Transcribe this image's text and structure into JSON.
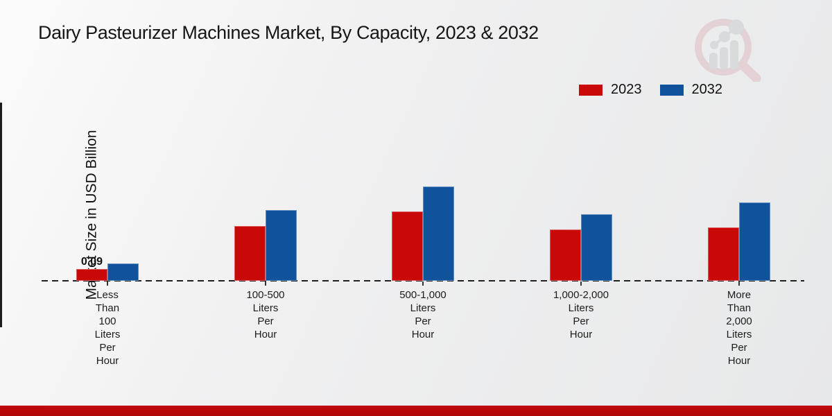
{
  "page": {
    "title": "Dairy Pasteurizer Machines Market, By Capacity, 2023 & 2032"
  },
  "chart_data": {
    "type": "bar",
    "title": "Dairy Pasteurizer Machines Market, By Capacity, 2023 & 2032",
    "xlabel": "",
    "ylabel": "Market Size in USD Billion",
    "categories": [
      "Less Than 100 Liters Per Hour",
      "100-500 Liters Per Hour",
      "500-1,000 Liters Per Hour",
      "1,000-2,000 Liters Per Hour",
      "More Than 2,000 Liters Per Hour"
    ],
    "series": [
      {
        "name": "2023",
        "color": "#c90808",
        "values": [
          0.09,
          0.42,
          0.53,
          0.39,
          0.41
        ]
      },
      {
        "name": "2032",
        "color": "#11529d",
        "values": [
          0.13,
          0.54,
          0.72,
          0.51,
          0.6
        ]
      }
    ],
    "data_labels": [
      {
        "series_index": 0,
        "category_index": 0,
        "text": "0.09"
      }
    ],
    "ylim": [
      0,
      0.8
    ],
    "grid": false,
    "baseline_style": "dashed",
    "legend_position": "top-right"
  },
  "colors": {
    "series_2023": "#c90808",
    "series_2032": "#11529d",
    "bottom_strip": "#b80909",
    "title_text": "#161616"
  }
}
